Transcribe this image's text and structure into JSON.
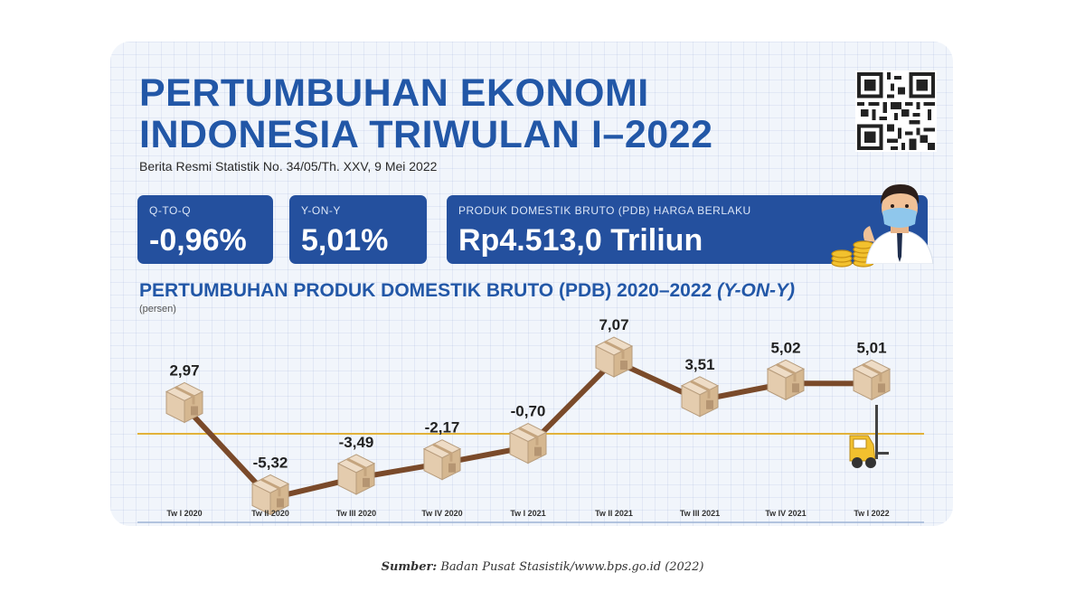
{
  "header": {
    "title_line1": "PERTUMBUHAN EKONOMI",
    "title_line2": "INDONESIA TRIWULAN I–2022",
    "subtitle": "Berita Resmi Statistik No. 34/05/Th. XXV, 9 Mei 2022"
  },
  "stats": {
    "qtoq": {
      "label": "Q-TO-Q",
      "value": "-0,96%"
    },
    "yony": {
      "label": "Y-ON-Y",
      "value": "5,01%"
    },
    "pdb": {
      "label": "PRODUK DOMESTIK BRUTO (PDB) HARGA BERLAKU",
      "value": "Rp4.513,0 Triliun"
    }
  },
  "chart_data": {
    "type": "line",
    "title": "PERTUMBUHAN PRODUK DOMESTIK BRUTO (PDB) 2020–2022",
    "title_suffix": "(Y-ON-Y)",
    "ylabel": "(persen)",
    "categories": [
      "Tw I 2020",
      "Tw II 2020",
      "Tw III 2020",
      "Tw IV 2020",
      "Tw I 2021",
      "Tw II 2021",
      "Tw III 2021",
      "Tw IV 2021",
      "Tw I 2022"
    ],
    "values": [
      2.97,
      -5.32,
      -3.49,
      -2.17,
      -0.7,
      7.07,
      3.51,
      5.02,
      5.01
    ],
    "value_labels": [
      "2,97",
      "-5,32",
      "-3,49",
      "-2,17",
      "-0,70",
      "7,07",
      "3,51",
      "5,02",
      "5,01"
    ],
    "ylim": [
      -6,
      8
    ],
    "grid": false,
    "legend": "none",
    "line_color": "#7a4a2a",
    "zero_line_color": "#e2b23a"
  },
  "source": {
    "label": "Sumber:",
    "text": "Badan Pusat Stasistik/www.bps.go.id (2022)"
  },
  "colors": {
    "title": "#2257a7",
    "box": "#24509e"
  },
  "icons": {
    "qr": "qr-code-icon",
    "person": "masked-officer-icon",
    "coins": "gold-coins-icon",
    "forklift": "forklift-icon",
    "box": "cardboard-box-icon"
  }
}
